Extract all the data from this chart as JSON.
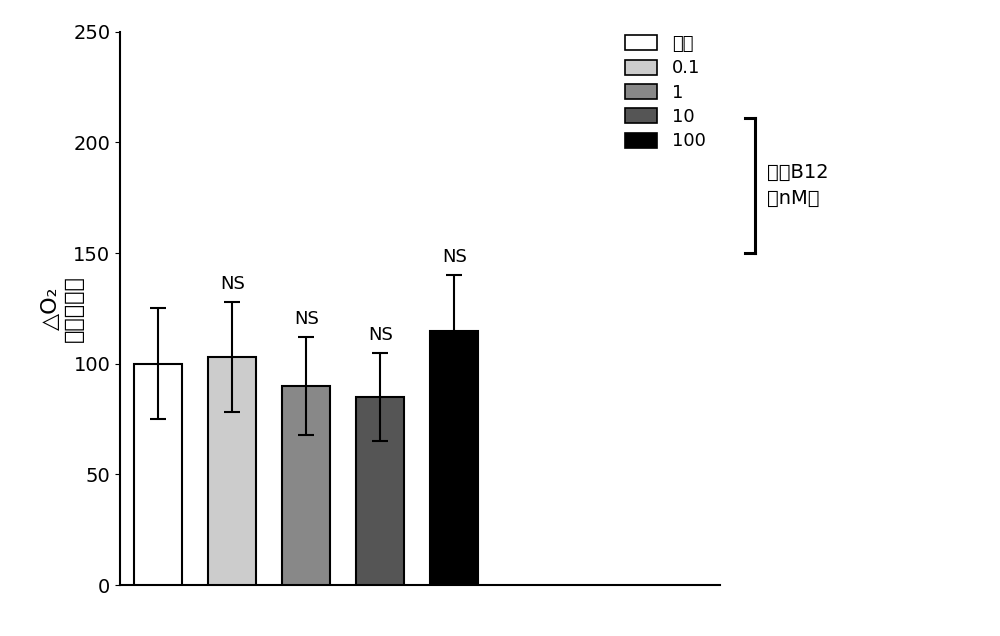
{
  "categories": [
    "对照",
    "0.1",
    "1",
    "10",
    "100"
  ],
  "values": [
    100.0,
    103.0,
    90.0,
    85.0,
    115.0
  ],
  "errors": [
    25.0,
    25.0,
    22.0,
    20.0,
    25.0
  ],
  "bar_colors": [
    "white",
    "#cccccc",
    "#888888",
    "#555555",
    "#000000"
  ],
  "bar_edgecolors": [
    "black",
    "black",
    "black",
    "black",
    "black"
  ],
  "ns_labels": [
    null,
    "NS",
    "NS",
    "NS",
    "NS"
  ],
  "ylabel_line1": "△O₂",
  "ylabel_line2": "（对照％）",
  "ylim": [
    0,
    250
  ],
  "yticks": [
    0,
    50,
    100,
    150,
    200,
    250
  ],
  "legend_labels": [
    "对照",
    "0.1",
    "1",
    "10",
    "100"
  ],
  "legend_facecolors": [
    "white",
    "#cccccc",
    "#888888",
    "#555555",
    "#000000"
  ],
  "legend_hatches": [
    null,
    ".....",
    "-----",
    ".....",
    null
  ],
  "legend_title_line1": "甲基B12",
  "legend_title_line2": "（nM）",
  "ns_fontsize": 13,
  "ylabel_fontsize": 16,
  "tick_fontsize": 14,
  "legend_fontsize": 13,
  "bar_width": 0.55,
  "figsize": [
    10.0,
    6.36
  ],
  "dpi": 100
}
